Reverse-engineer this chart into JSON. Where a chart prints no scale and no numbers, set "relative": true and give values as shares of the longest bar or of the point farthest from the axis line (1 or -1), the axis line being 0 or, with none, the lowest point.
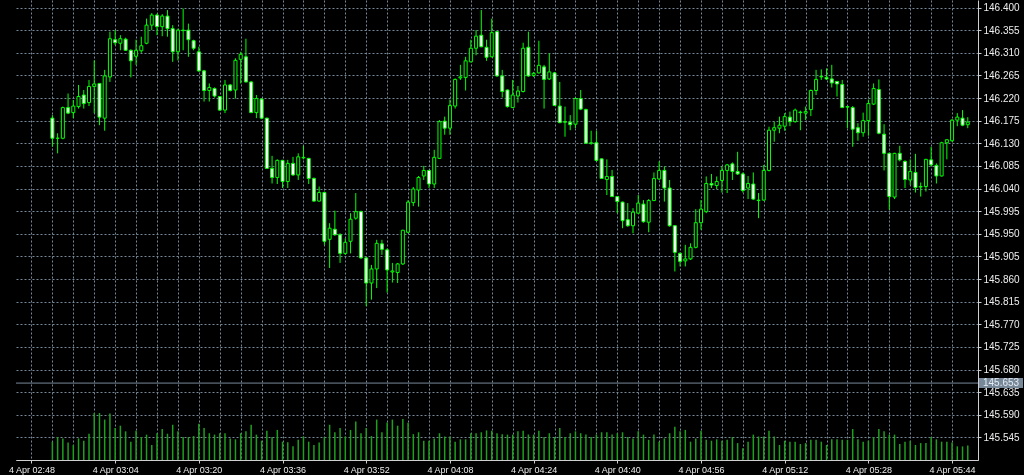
{
  "chart_data": [
    {
      "type": "candlestick",
      "color": "#00ff00",
      "grid": true,
      "tick_labels": "y",
      "x": [
        "--04-04T02:52",
        "--04-04T02:53",
        "--04-04T02:54",
        "--04-04T02:55",
        "--04-04T02:56",
        "--04-04T02:57",
        "--04-04T02:58",
        "--04-04T02:59",
        "--04-04T03:00",
        "--04-04T03:01",
        "--04-04T03:02",
        "--04-04T03:03",
        "--04-04T03:04",
        "--04-04T03:05",
        "--04-04T03:06",
        "--04-04T03:07",
        "--04-04T03:08",
        "--04-04T03:09",
        "--04-04T03:10",
        "--04-04T03:11",
        "--04-04T03:12",
        "--04-04T03:13",
        "--04-04T03:14",
        "--04-04T03:15",
        "--04-04T03:16",
        "--04-04T03:17",
        "--04-04T03:18",
        "--04-04T03:19",
        "--04-04T03:20",
        "--04-04T03:21",
        "--04-04T03:22",
        "--04-04T03:23",
        "--04-04T03:24",
        "--04-04T03:25",
        "--04-04T03:26",
        "--04-04T03:27",
        "--04-04T03:28",
        "--04-04T03:29",
        "--04-04T03:30",
        "--04-04T03:31",
        "--04-04T03:32",
        "--04-04T03:33",
        "--04-04T03:34",
        "--04-04T03:35",
        "--04-04T03:36",
        "--04-04T03:37",
        "--04-04T03:38",
        "--04-04T03:39",
        "--04-04T03:40",
        "--04-04T03:41",
        "--04-04T03:42",
        "--04-04T03:43",
        "--04-04T03:44",
        "--04-04T03:45",
        "--04-04T03:46",
        "--04-04T03:47",
        "--04-04T03:48",
        "--04-04T03:49",
        "--04-04T03:50",
        "--04-04T03:51",
        "--04-04T03:52",
        "--04-04T03:53",
        "--04-04T03:54",
        "--04-04T03:55",
        "--04-04T03:56",
        "--04-04T03:57",
        "--04-04T03:58",
        "--04-04T03:59",
        "--04-04T04:00",
        "--04-04T04:01",
        "--04-04T04:02",
        "--04-04T04:03",
        "--04-04T04:04",
        "--04-04T04:05",
        "--04-04T04:06",
        "--04-04T04:07",
        "--04-04T04:08",
        "--04-04T04:09",
        "--04-04T04:10",
        "--04-04T04:11",
        "--04-04T04:12",
        "--04-04T04:13",
        "--04-04T04:14",
        "--04-04T04:15",
        "--04-04T04:16",
        "--04-04T04:17",
        "--04-04T04:18",
        "--04-04T04:19",
        "--04-04T04:20",
        "--04-04T04:21",
        "--04-04T04:22",
        "--04-04T04:23",
        "--04-04T04:24",
        "--04-04T04:25",
        "--04-04T04:26",
        "--04-04T04:27",
        "--04-04T04:28",
        "--04-04T04:29",
        "--04-04T04:30",
        "--04-04T04:31",
        "--04-04T04:32",
        "--04-04T04:33",
        "--04-04T04:34",
        "--04-04T04:35",
        "--04-04T04:36",
        "--04-04T04:37",
        "--04-04T04:38",
        "--04-04T04:39",
        "--04-04T04:40",
        "--04-04T04:41",
        "--04-04T04:42",
        "--04-04T04:43",
        "--04-04T04:44",
        "--04-04T04:45",
        "--04-04T04:46",
        "--04-04T04:47",
        "--04-04T04:48",
        "--04-04T04:49",
        "--04-04T04:50",
        "--04-04T04:51",
        "--04-04T04:52",
        "--04-04T04:53",
        "--04-04T04:54",
        "--04-04T04:55",
        "--04-04T04:56",
        "--04-04T04:57",
        "--04-04T04:58",
        "--04-04T04:59",
        "--04-04T05:00",
        "--04-04T05:01",
        "--04-04T05:02",
        "--04-04T05:03",
        "--04-04T05:04",
        "--04-04T05:05",
        "--04-04T05:06",
        "--04-04T05:07",
        "--04-04T05:08",
        "--04-04T05:09",
        "--04-04T05:10",
        "--04-04T05:11",
        "--04-04T05:12",
        "--04-04T05:13",
        "--04-04T05:14",
        "--04-04T05:15",
        "--04-04T05:16",
        "--04-04T05:17",
        "--04-04T05:18",
        "--04-04T05:19",
        "--04-04T05:20",
        "--04-04T05:21",
        "--04-04T05:22",
        "--04-04T05:23",
        "--04-04T05:24",
        "--04-04T05:25",
        "--04-04T05:26",
        "--04-04T05:27",
        "--04-04T05:28",
        "--04-04T05:29",
        "--04-04T05:30",
        "--04-04T05:31",
        "--04-04T05:32",
        "--04-04T05:33",
        "--04-04T05:34",
        "--04-04T05:35",
        "--04-04T05:36",
        "--04-04T05:37",
        "--04-04T05:38",
        "--04-04T05:39",
        "--04-04T05:40",
        "--04-04T05:41",
        "--04-04T05:42",
        "--04-04T05:43",
        "--04-04T05:44",
        "--04-04T05:45",
        "--04-04T05:46",
        "--04-04T05:47"
      ],
      "ohlc": [
        [
          146.18,
          146.186,
          146.123,
          146.14
        ],
        [
          146.14,
          146.15,
          146.11,
          146.14
        ],
        [
          146.14,
          146.203,
          146.138,
          146.201
        ],
        [
          146.201,
          146.229,
          146.188,
          146.19
        ],
        [
          146.191,
          146.216,
          146.18,
          146.204
        ],
        [
          146.203,
          146.246,
          146.199,
          146.223
        ],
        [
          146.226,
          146.236,
          146.199,
          146.209
        ],
        [
          146.211,
          146.256,
          146.204,
          146.243
        ],
        [
          146.243,
          146.295,
          146.19,
          146.248
        ],
        [
          146.249,
          146.25,
          146.166,
          146.182
        ],
        [
          146.18,
          146.276,
          146.155,
          146.264
        ],
        [
          146.262,
          146.352,
          146.252,
          146.338
        ],
        [
          146.336,
          146.355,
          146.325,
          146.33
        ],
        [
          146.329,
          146.345,
          146.315,
          146.338
        ],
        [
          146.337,
          146.34,
          146.314,
          146.315
        ],
        [
          146.315,
          146.317,
          146.261,
          146.294
        ],
        [
          146.303,
          146.336,
          146.286,
          146.315
        ],
        [
          146.314,
          146.342,
          146.31,
          146.324
        ],
        [
          146.329,
          146.378,
          146.327,
          146.365
        ],
        [
          146.365,
          146.389,
          146.355,
          146.385
        ],
        [
          146.385,
          146.388,
          146.345,
          146.362
        ],
        [
          146.362,
          146.387,
          146.343,
          146.383
        ],
        [
          146.383,
          146.395,
          146.342,
          146.358
        ],
        [
          146.358,
          146.365,
          146.292,
          146.312
        ],
        [
          146.312,
          146.358,
          146.295,
          146.355
        ],
        [
          146.354,
          146.398,
          146.315,
          146.355
        ],
        [
          146.355,
          146.368,
          146.302,
          146.336
        ],
        [
          146.334,
          146.336,
          146.315,
          146.319
        ],
        [
          146.312,
          146.322,
          146.272,
          146.274
        ],
        [
          146.274,
          146.276,
          146.213,
          146.235
        ],
        [
          146.235,
          146.249,
          146.213,
          146.241
        ],
        [
          146.239,
          146.241,
          146.221,
          146.224
        ],
        [
          146.223,
          146.224,
          146.195,
          146.196
        ],
        [
          146.196,
          146.256,
          146.19,
          146.246
        ],
        [
          146.246,
          146.248,
          146.233,
          146.235
        ],
        [
          146.236,
          146.299,
          146.219,
          146.295
        ],
        [
          146.297,
          146.312,
          146.249,
          146.307
        ],
        [
          146.302,
          146.338,
          146.251,
          146.252
        ],
        [
          146.252,
          146.254,
          146.19,
          146.191
        ],
        [
          146.191,
          146.226,
          146.18,
          146.219
        ],
        [
          146.218,
          146.219,
          146.178,
          146.18
        ],
        [
          146.18,
          146.181,
          146.079,
          146.08
        ],
        [
          146.08,
          146.105,
          146.05,
          146.062
        ],
        [
          146.062,
          146.098,
          146.049,
          146.096
        ],
        [
          146.096,
          146.097,
          146.041,
          146.054
        ],
        [
          146.054,
          146.097,
          146.041,
          146.09
        ],
        [
          146.09,
          146.103,
          146.065,
          146.067
        ],
        [
          146.067,
          146.11,
          146.057,
          146.103
        ],
        [
          146.101,
          146.125,
          146.098,
          146.102
        ],
        [
          146.1,
          146.101,
          146.049,
          146.06
        ],
        [
          146.06,
          146.062,
          146.014,
          146.015
        ],
        [
          146.015,
          146.044,
          146.014,
          146.032
        ],
        [
          146.032,
          146.034,
          145.928,
          145.935
        ],
        [
          145.939,
          145.971,
          145.882,
          145.961
        ],
        [
          145.959,
          145.996,
          145.946,
          145.948
        ],
        [
          145.948,
          145.951,
          145.892,
          145.911
        ],
        [
          145.911,
          145.941,
          145.908,
          145.933
        ],
        [
          145.935,
          145.991,
          145.911,
          145.979
        ],
        [
          145.981,
          146.031,
          145.978,
          145.994
        ],
        [
          145.994,
          145.996,
          145.9,
          145.902
        ],
        [
          145.902,
          145.903,
          145.806,
          145.852
        ],
        [
          145.852,
          145.888,
          145.819,
          145.88
        ],
        [
          145.88,
          145.938,
          145.842,
          145.931
        ],
        [
          145.93,
          145.938,
          145.908,
          145.919
        ],
        [
          145.918,
          145.921,
          145.833,
          145.878
        ],
        [
          145.874,
          145.892,
          145.853,
          145.876
        ],
        [
          145.873,
          145.892,
          145.852,
          145.89
        ],
        [
          145.89,
          145.958,
          145.888,
          145.957
        ],
        [
          145.953,
          146.017,
          145.951,
          146.013
        ],
        [
          146.012,
          146.043,
          146.005,
          146.039
        ],
        [
          146.037,
          146.065,
          146.004,
          146.062
        ],
        [
          146.065,
          146.085,
          146.057,
          146.076
        ],
        [
          146.076,
          146.077,
          146.041,
          146.049
        ],
        [
          146.049,
          146.117,
          146.041,
          146.102
        ],
        [
          146.1,
          146.176,
          146.099,
          146.173
        ],
        [
          146.174,
          146.183,
          146.147,
          146.16
        ],
        [
          146.16,
          146.217,
          146.147,
          146.205
        ],
        [
          146.204,
          146.259,
          146.199,
          146.257
        ],
        [
          146.26,
          146.286,
          146.256,
          146.262
        ],
        [
          146.261,
          146.302,
          146.235,
          146.294
        ],
        [
          146.292,
          146.336,
          146.291,
          146.319
        ],
        [
          146.319,
          146.355,
          146.305,
          146.343
        ],
        [
          146.345,
          146.395,
          146.321,
          146.322
        ],
        [
          146.321,
          146.336,
          146.294,
          146.301
        ],
        [
          146.302,
          146.378,
          146.301,
          146.35
        ],
        [
          146.352,
          146.353,
          146.262,
          146.264
        ],
        [
          146.264,
          146.276,
          146.221,
          146.233
        ],
        [
          146.236,
          146.237,
          146.201,
          146.203
        ],
        [
          146.201,
          146.256,
          146.2,
          146.226
        ],
        [
          146.224,
          146.244,
          146.211,
          146.234
        ],
        [
          146.233,
          146.33,
          146.231,
          146.319
        ],
        [
          146.321,
          146.352,
          146.262,
          146.264
        ],
        [
          146.265,
          146.272,
          146.262,
          146.269
        ],
        [
          146.27,
          146.334,
          146.269,
          146.285
        ],
        [
          146.282,
          146.286,
          146.199,
          146.257
        ],
        [
          146.258,
          146.309,
          146.256,
          146.272
        ],
        [
          146.27,
          146.272,
          146.204,
          146.205
        ],
        [
          146.204,
          146.252,
          146.17,
          146.171
        ],
        [
          146.173,
          146.203,
          146.143,
          146.172
        ],
        [
          146.172,
          146.186,
          146.156,
          146.167
        ],
        [
          146.168,
          146.221,
          146.16,
          146.219
        ],
        [
          146.219,
          146.236,
          146.196,
          146.198
        ],
        [
          146.197,
          146.199,
          146.129,
          146.13
        ],
        [
          146.13,
          146.155,
          146.127,
          146.131
        ],
        [
          146.131,
          146.155,
          146.094,
          146.096
        ],
        [
          146.099,
          146.1,
          146.059,
          146.06
        ],
        [
          146.058,
          146.098,
          146.027,
          146.064
        ],
        [
          146.064,
          146.077,
          146.023,
          146.024
        ],
        [
          146.024,
          146.025,
          145.991,
          146.014
        ],
        [
          146.013,
          146.014,
          145.961,
          145.976
        ],
        [
          145.978,
          146.011,
          145.964,
          145.966
        ],
        [
          145.966,
          146.001,
          145.951,
          145.993
        ],
        [
          145.991,
          146.027,
          145.99,
          146.011
        ],
        [
          146.009,
          146.017,
          145.972,
          145.974
        ],
        [
          145.973,
          146.019,
          145.953,
          146.016
        ],
        [
          146.016,
          146.072,
          146.015,
          146.06
        ],
        [
          146.059,
          146.094,
          146.057,
          146.076
        ],
        [
          146.076,
          146.084,
          146.014,
          146.041
        ],
        [
          146.041,
          146.057,
          145.964,
          145.966
        ],
        [
          145.966,
          145.967,
          145.875,
          145.913
        ],
        [
          145.911,
          145.913,
          145.885,
          145.895
        ],
        [
          145.896,
          145.928,
          145.885,
          145.9
        ],
        [
          145.9,
          145.931,
          145.898,
          145.923
        ],
        [
          145.923,
          145.999,
          145.921,
          145.972
        ],
        [
          145.972,
          146.017,
          145.958,
          145.999
        ],
        [
          145.994,
          146.064,
          145.991,
          146.05
        ],
        [
          146.05,
          146.069,
          146.041,
          146.047
        ],
        [
          146.046,
          146.064,
          146.039,
          146.054
        ],
        [
          146.056,
          146.084,
          146.032,
          146.076
        ],
        [
          146.076,
          146.089,
          146.031,
          146.087
        ],
        [
          146.089,
          146.092,
          146.057,
          146.074
        ],
        [
          146.074,
          146.113,
          146.067,
          146.069
        ],
        [
          146.069,
          146.072,
          146.032,
          146.036
        ],
        [
          146.041,
          146.065,
          146.019,
          146.05
        ],
        [
          146.049,
          146.072,
          146.017,
          146.019
        ],
        [
          146.017,
          146.031,
          145.981,
          146.016
        ],
        [
          146.017,
          146.087,
          146.016,
          146.076
        ],
        [
          146.076,
          146.163,
          146.074,
          146.156
        ],
        [
          146.156,
          146.173,
          146.133,
          146.161
        ],
        [
          146.16,
          146.183,
          146.15,
          146.166
        ],
        [
          146.164,
          146.19,
          146.155,
          146.183
        ],
        [
          146.182,
          146.193,
          146.164,
          146.173
        ],
        [
          146.173,
          146.199,
          146.171,
          146.196
        ],
        [
          146.192,
          146.195,
          146.156,
          146.191
        ],
        [
          146.19,
          146.203,
          146.176,
          146.193
        ],
        [
          146.197,
          146.237,
          146.184,
          146.235
        ],
        [
          146.235,
          146.276,
          146.226,
          146.257
        ],
        [
          146.263,
          146.277,
          146.256,
          146.262
        ],
        [
          146.261,
          146.279,
          146.256,
          146.258
        ],
        [
          146.258,
          146.286,
          146.241,
          146.25
        ],
        [
          146.253,
          146.254,
          146.223,
          146.248
        ],
        [
          146.247,
          146.256,
          146.2,
          146.201
        ],
        [
          146.203,
          146.204,
          146.16,
          146.202
        ],
        [
          146.201,
          146.204,
          146.123,
          146.158
        ],
        [
          146.161,
          146.17,
          146.135,
          146.151
        ],
        [
          146.151,
          146.191,
          146.143,
          146.175
        ],
        [
          146.175,
          146.217,
          146.145,
          146.209
        ],
        [
          146.208,
          146.249,
          146.206,
          146.239
        ],
        [
          146.237,
          146.257,
          146.148,
          146.15
        ],
        [
          146.148,
          146.168,
          146.076,
          146.11
        ],
        [
          146.11,
          146.111,
          145.998,
          146.024
        ],
        [
          146.023,
          146.111,
          146.019,
          146.11
        ],
        [
          146.11,
          146.125,
          146.094,
          146.097
        ],
        [
          146.094,
          146.096,
          146.041,
          146.058
        ],
        [
          146.057,
          146.098,
          146.047,
          146.074
        ],
        [
          146.072,
          146.109,
          146.032,
          146.042
        ],
        [
          146.043,
          146.052,
          146.024,
          146.044
        ],
        [
          146.044,
          146.099,
          146.034,
          146.098
        ],
        [
          146.097,
          146.123,
          146.084,
          146.087
        ],
        [
          146.086,
          146.09,
          146.05,
          146.065
        ],
        [
          146.065,
          146.133,
          146.064,
          146.131
        ],
        [
          146.131,
          146.138,
          146.098,
          146.137
        ],
        [
          146.135,
          146.178,
          146.133,
          146.176
        ],
        [
          146.176,
          146.19,
          146.164,
          146.182
        ],
        [
          146.18,
          146.196,
          146.164,
          146.166
        ],
        [
          146.167,
          146.182,
          146.16,
          146.172
        ]
      ],
      "xlim": [
        "--04-04T02:46",
        "--04-04T05:48"
      ],
      "xticks": [
        {
          "value": "--04-04T02:48",
          "label": "4 Apr 02:48"
        },
        {
          "value": "--04-04T02:52",
          "label": null
        },
        {
          "value": "--04-04T02:56",
          "label": null
        },
        {
          "value": "--04-04T03:00",
          "label": null
        },
        {
          "value": "--04-04T03:04",
          "label": "4 Apr 03:04"
        },
        {
          "value": "--04-04T03:08",
          "label": null
        },
        {
          "value": "--04-04T03:12",
          "label": null
        },
        {
          "value": "--04-04T03:16",
          "label": null
        },
        {
          "value": "--04-04T03:20",
          "label": "4 Apr 03:20"
        },
        {
          "value": "--04-04T03:24",
          "label": null
        },
        {
          "value": "--04-04T03:28",
          "label": null
        },
        {
          "value": "--04-04T03:32",
          "label": null
        },
        {
          "value": "--04-04T03:36",
          "label": "4 Apr 03:36"
        },
        {
          "value": "--04-04T03:40",
          "label": null
        },
        {
          "value": "--04-04T03:44",
          "label": null
        },
        {
          "value": "--04-04T03:48",
          "label": null
        },
        {
          "value": "--04-04T03:52",
          "label": "4 Apr 03:52"
        },
        {
          "value": "--04-04T03:56",
          "label": null
        },
        {
          "value": "--04-04T04:00",
          "label": null
        },
        {
          "value": "--04-04T04:04",
          "label": null
        },
        {
          "value": "--04-04T04:08",
          "label": "4 Apr 04:08"
        },
        {
          "value": "--04-04T04:12",
          "label": null
        },
        {
          "value": "--04-04T04:16",
          "label": null
        },
        {
          "value": "--04-04T04:20",
          "label": null
        },
        {
          "value": "--04-04T04:24",
          "label": "4 Apr 04:24"
        },
        {
          "value": "--04-04T04:28",
          "label": null
        },
        {
          "value": "--04-04T04:32",
          "label": null
        },
        {
          "value": "--04-04T04:36",
          "label": null
        },
        {
          "value": "--04-04T04:40",
          "label": "4 Apr 04:40"
        },
        {
          "value": "--04-04T04:44",
          "label": null
        },
        {
          "value": "--04-04T04:48",
          "label": null
        },
        {
          "value": "--04-04T04:52",
          "label": null
        },
        {
          "value": "--04-04T04:56",
          "label": "4 Apr 04:56"
        },
        {
          "value": "--04-04T05:00",
          "label": null
        },
        {
          "value": "--04-04T05:04",
          "label": null
        },
        {
          "value": "--04-04T05:08",
          "label": null
        },
        {
          "value": "--04-04T05:12",
          "label": "4 Apr 05:12"
        },
        {
          "value": "--04-04T05:16",
          "label": null
        },
        {
          "value": "--04-04T05:20",
          "label": null
        },
        {
          "value": "--04-04T05:24",
          "label": null
        },
        {
          "value": "--04-04T05:28",
          "label": "4 Apr 05:28"
        },
        {
          "value": "--04-04T05:32",
          "label": null
        },
        {
          "value": "--04-04T05:36",
          "label": null
        },
        {
          "value": "--04-04T05:40",
          "label": null
        },
        {
          "value": "--04-04T05:44",
          "label": "4 Apr 05:44"
        }
      ],
      "ylim": [
        145.5,
        146.415
      ],
      "yticks": [
        {
          "value": 145.545,
          "label": "145.545"
        },
        {
          "value": 145.59,
          "label": "145.590"
        },
        {
          "value": 145.635,
          "label": "145.635"
        },
        {
          "value": 145.68,
          "label": "145.680"
        },
        {
          "value": 145.725,
          "label": "145.725"
        },
        {
          "value": 145.77,
          "label": "145.770"
        },
        {
          "value": 145.815,
          "label": "145.815"
        },
        {
          "value": 145.86,
          "label": "145.860"
        },
        {
          "value": 145.905,
          "label": "145.905"
        },
        {
          "value": 145.95,
          "label": "145.950"
        },
        {
          "value": 145.995,
          "label": "145.995"
        },
        {
          "value": 146.04,
          "label": "146.040"
        },
        {
          "value": 146.085,
          "label": "146.085"
        },
        {
          "value": 146.13,
          "label": "146.130"
        },
        {
          "value": 146.175,
          "label": "146.175"
        },
        {
          "value": 146.22,
          "label": "146.220"
        },
        {
          "value": 146.265,
          "label": "146.265"
        },
        {
          "value": 146.31,
          "label": "146.310"
        },
        {
          "value": 146.355,
          "label": "146.355"
        },
        {
          "value": 146.4,
          "label": "146.400"
        }
      ],
      "ref_lines": [
        {
          "axis": "y",
          "value": 145.653,
          "label": "145.653",
          "color": "#778899"
        }
      ]
    },
    {
      "type": "bar",
      "relative": true,
      "color": "#1f9f1f",
      "x": [
        "--04-04T02:52",
        "--04-04T02:53",
        "--04-04T02:54",
        "--04-04T02:55",
        "--04-04T02:56",
        "--04-04T02:57",
        "--04-04T02:58",
        "--04-04T02:59",
        "--04-04T03:00",
        "--04-04T03:01",
        "--04-04T03:02",
        "--04-04T03:03",
        "--04-04T03:04",
        "--04-04T03:05",
        "--04-04T03:06",
        "--04-04T03:07",
        "--04-04T03:08",
        "--04-04T03:09",
        "--04-04T03:10",
        "--04-04T03:11",
        "--04-04T03:12",
        "--04-04T03:13",
        "--04-04T03:14",
        "--04-04T03:15",
        "--04-04T03:16",
        "--04-04T03:17",
        "--04-04T03:18",
        "--04-04T03:19",
        "--04-04T03:20",
        "--04-04T03:21",
        "--04-04T03:22",
        "--04-04T03:23",
        "--04-04T03:24",
        "--04-04T03:25",
        "--04-04T03:26",
        "--04-04T03:27",
        "--04-04T03:28",
        "--04-04T03:29",
        "--04-04T03:30",
        "--04-04T03:31",
        "--04-04T03:32",
        "--04-04T03:33",
        "--04-04T03:34",
        "--04-04T03:35",
        "--04-04T03:36",
        "--04-04T03:37",
        "--04-04T03:38",
        "--04-04T03:39",
        "--04-04T03:40",
        "--04-04T03:41",
        "--04-04T03:42",
        "--04-04T03:43",
        "--04-04T03:44",
        "--04-04T03:45",
        "--04-04T03:46",
        "--04-04T03:47",
        "--04-04T03:48",
        "--04-04T03:49",
        "--04-04T03:50",
        "--04-04T03:51",
        "--04-04T03:52",
        "--04-04T03:53",
        "--04-04T03:54",
        "--04-04T03:55",
        "--04-04T03:56",
        "--04-04T03:57",
        "--04-04T03:58",
        "--04-04T03:59",
        "--04-04T04:00",
        "--04-04T04:01",
        "--04-04T04:02",
        "--04-04T04:03",
        "--04-04T04:04",
        "--04-04T04:05",
        "--04-04T04:06",
        "--04-04T04:07",
        "--04-04T04:08",
        "--04-04T04:09",
        "--04-04T04:10",
        "--04-04T04:11",
        "--04-04T04:12",
        "--04-04T04:13",
        "--04-04T04:14",
        "--04-04T04:15",
        "--04-04T04:16",
        "--04-04T04:17",
        "--04-04T04:18",
        "--04-04T04:19",
        "--04-04T04:20",
        "--04-04T04:21",
        "--04-04T04:22",
        "--04-04T04:23",
        "--04-04T04:24",
        "--04-04T04:25",
        "--04-04T04:26",
        "--04-04T04:27",
        "--04-04T04:28",
        "--04-04T04:29",
        "--04-04T04:30",
        "--04-04T04:31",
        "--04-04T04:32",
        "--04-04T04:33",
        "--04-04T04:34",
        "--04-04T04:35",
        "--04-04T04:36",
        "--04-04T04:37",
        "--04-04T04:38",
        "--04-04T04:39",
        "--04-04T04:40",
        "--04-04T04:41",
        "--04-04T04:42",
        "--04-04T04:43",
        "--04-04T04:44",
        "--04-04T04:45",
        "--04-04T04:46",
        "--04-04T04:47",
        "--04-04T04:48",
        "--04-04T04:49",
        "--04-04T04:50",
        "--04-04T04:51",
        "--04-04T04:52",
        "--04-04T04:53",
        "--04-04T04:54",
        "--04-04T04:55",
        "--04-04T04:56",
        "--04-04T04:57",
        "--04-04T04:58",
        "--04-04T04:59",
        "--04-04T05:00",
        "--04-04T05:01",
        "--04-04T05:02",
        "--04-04T05:03",
        "--04-04T05:04",
        "--04-04T05:05",
        "--04-04T05:06",
        "--04-04T05:07",
        "--04-04T05:08",
        "--04-04T05:09",
        "--04-04T05:10",
        "--04-04T05:11",
        "--04-04T05:12",
        "--04-04T05:13",
        "--04-04T05:14",
        "--04-04T05:15",
        "--04-04T05:16",
        "--04-04T05:17",
        "--04-04T05:18",
        "--04-04T05:19",
        "--04-04T05:20",
        "--04-04T05:21",
        "--04-04T05:22",
        "--04-04T05:23",
        "--04-04T05:24",
        "--04-04T05:25",
        "--04-04T05:26",
        "--04-04T05:27",
        "--04-04T05:28",
        "--04-04T05:29",
        "--04-04T05:30",
        "--04-04T05:31",
        "--04-04T05:32",
        "--04-04T05:33",
        "--04-04T05:34",
        "--04-04T05:35",
        "--04-04T05:36",
        "--04-04T05:37",
        "--04-04T05:38",
        "--04-04T05:39",
        "--04-04T05:40",
        "--04-04T05:41",
        "--04-04T05:42",
        "--04-04T05:43",
        "--04-04T05:44",
        "--04-04T05:45",
        "--04-04T05:46",
        "--04-04T05:47"
      ],
      "xlim": [
        "--04-04T02:46",
        "--04-04T05:48"
      ],
      "xticks": [
        {
          "value": "--04-04T02:48",
          "label": "4 Apr 02:48"
        },
        {
          "value": "--04-04T03:04",
          "label": "4 Apr 03:04"
        },
        {
          "value": "--04-04T03:20",
          "label": "4 Apr 03:20"
        },
        {
          "value": "--04-04T03:36",
          "label": "4 Apr 03:36"
        },
        {
          "value": "--04-04T03:52",
          "label": "4 Apr 03:52"
        },
        {
          "value": "--04-04T04:08",
          "label": "4 Apr 04:08"
        },
        {
          "value": "--04-04T04:24",
          "label": "4 Apr 04:24"
        },
        {
          "value": "--04-04T04:40",
          "label": "4 Apr 04:40"
        },
        {
          "value": "--04-04T04:56",
          "label": "4 Apr 04:56"
        },
        {
          "value": "--04-04T05:12",
          "label": "4 Apr 05:12"
        },
        {
          "value": "--04-04T05:28",
          "label": "4 Apr 05:28"
        },
        {
          "value": "--04-04T05:44",
          "label": "4 Apr 05:44"
        }
      ],
      "values": [
        0.39,
        0.49,
        0.46,
        0.37,
        0.32,
        0.46,
        0.41,
        0.56,
        1,
        1,
        0.86,
        0.99,
        0.68,
        0.73,
        0.61,
        0.39,
        0.62,
        0.49,
        0.54,
        0.32,
        0.57,
        0.66,
        0.56,
        0.75,
        0.61,
        0.49,
        0.49,
        0.51,
        0.77,
        0.68,
        0.57,
        0.54,
        0.57,
        0.57,
        0.46,
        0.44,
        0.57,
        0.61,
        0.75,
        0.54,
        0.41,
        0.62,
        0.49,
        0.64,
        0.39,
        0.38,
        0.29,
        0.43,
        0.5,
        0.39,
        0.32,
        0.37,
        0.49,
        0.75,
        0.59,
        0.68,
        0.5,
        0.64,
        0.82,
        0.57,
        0.68,
        0.51,
        0.86,
        0.59,
        0.8,
        0.86,
        0.73,
        0.87,
        0.79,
        0.55,
        0.59,
        0.41,
        0.41,
        0.46,
        0.57,
        0.5,
        0.5,
        0.39,
        0.44,
        0.44,
        0.57,
        0.57,
        0.59,
        0.63,
        0.62,
        0.57,
        0.55,
        0.54,
        0.54,
        0.61,
        0.62,
        0.54,
        0.54,
        0.62,
        0.49,
        0.57,
        0.49,
        0.68,
        0.49,
        0.57,
        0.61,
        0.57,
        0.54,
        0.49,
        0.54,
        0.59,
        0.59,
        0.54,
        0.57,
        0.59,
        0.49,
        0.46,
        0.61,
        0.54,
        0.43,
        0.54,
        0.39,
        0.46,
        0.57,
        0.71,
        0.61,
        0.64,
        0.39,
        0.46,
        0.62,
        0.43,
        0.41,
        0.44,
        0.41,
        0.43,
        0.49,
        0.36,
        0.25,
        0.39,
        0.54,
        0.5,
        0.5,
        0.62,
        0.5,
        0.32,
        0.41,
        0.39,
        0.39,
        0.34,
        0.36,
        0.43,
        0.43,
        0.39,
        0.32,
        0.44,
        0.44,
        0.43,
        0.43,
        0.66,
        0.44,
        0.39,
        0.41,
        0.49,
        0.66,
        0.61,
        0.54,
        0.54,
        0.34,
        0.39,
        0.41,
        0.32,
        0.36,
        0.36,
        0.49,
        0.44,
        0.39,
        0.39,
        0.37,
        0.29,
        0.29,
        0.31
      ]
    }
  ]
}
